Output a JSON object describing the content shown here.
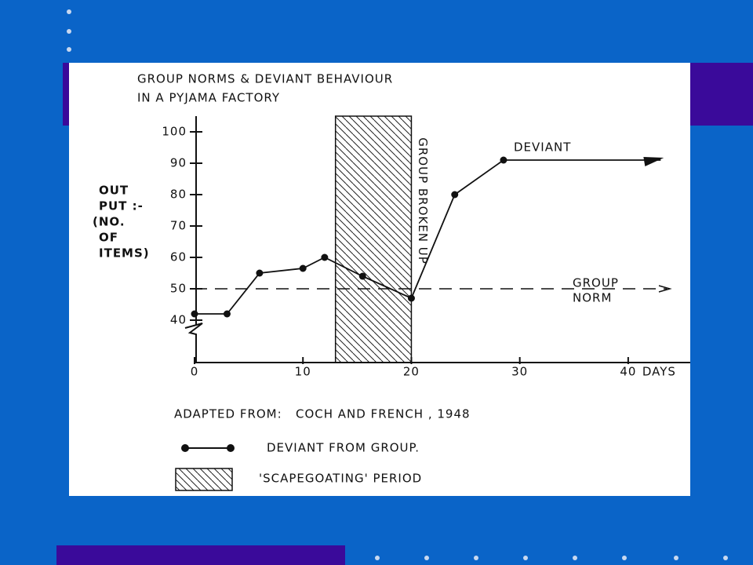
{
  "chart_data": {
    "type": "line",
    "title": [
      "GROUP NORMS & DEVIANT BEHAVIOUR",
      "IN A PYJAMA FACTORY"
    ],
    "ylabel": [
      "OUT",
      "PUT :-",
      "(NO.",
      "OF",
      "ITEMS)"
    ],
    "xlabel": "DAYS",
    "x": [
      0,
      3,
      6,
      10,
      12,
      15.5,
      20,
      24,
      28.5
    ],
    "series": [
      {
        "name": "DEVIANT FROM GROUP.",
        "color": "#111111",
        "values": [
          42,
          42,
          55,
          56.5,
          60,
          54,
          47,
          80,
          91
        ]
      }
    ],
    "arrow": {
      "x": 43,
      "y": 91,
      "label": "DEVIANT"
    },
    "group_norm": {
      "value": 50,
      "label": [
        "GROUP",
        "NORM"
      ]
    },
    "shaded": {
      "name": "'SCAPEGOATING' PERIOD",
      "x": [
        13,
        20
      ],
      "label": "GROUP BROKEN UP"
    },
    "source": "ADAPTED FROM:   COCH AND FRENCH , 1948",
    "xlim": [
      0,
      45
    ],
    "ylim": [
      26.5,
      105
    ],
    "xticks": [
      0,
      10,
      20,
      30,
      40
    ],
    "yticks": [
      40,
      50,
      60,
      70,
      80,
      90,
      100
    ]
  }
}
